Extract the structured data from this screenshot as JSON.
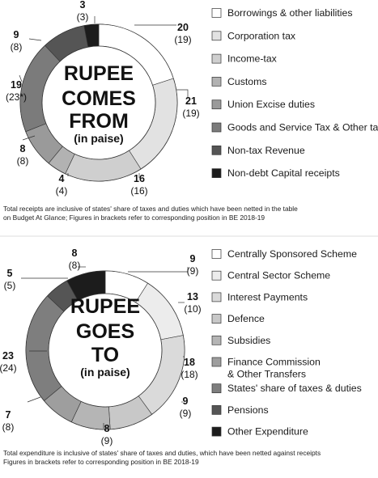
{
  "chart_data": [
    {
      "type": "donut",
      "title_lines": [
        "RUPEE",
        "COMES",
        "FROM"
      ],
      "subtitle": "(in paise)",
      "legend_placement": "right",
      "categories": [
        "Borrowings & other liabilities",
        "Corporation tax",
        "Income-tax",
        "Customs",
        "Union Excise duties",
        "Goods and Service Tax & Other taxes",
        "Non-tax Revenue",
        "Non-debt Capital receipts"
      ],
      "values": [
        20,
        21,
        16,
        4,
        8,
        19,
        9,
        3
      ],
      "previous_labels": [
        "(19)",
        "(19)",
        "(16)",
        "(4)",
        "(8)",
        "(23*)",
        "(8)",
        "(3)"
      ],
      "colors": [
        "#ffffff",
        "#e2e2e2",
        "#cfcfcf",
        "#b2b2b2",
        "#9a9a9a",
        "#7b7b7b",
        "#555555",
        "#1c1c1c"
      ],
      "note_lines": [
        "Total receipts are inclusive of states' share of taxes and duties which have been netted in the table",
        "on Budget At Glance; Figures in brackets refer to corresponding position in BE 2018-19"
      ]
    },
    {
      "type": "donut",
      "title_lines": [
        "RUPEE",
        "GOES",
        "TO"
      ],
      "subtitle": "(in paise)",
      "legend_placement": "right",
      "categories": [
        "Centrally Sponsored Scheme",
        "Central Sector Scheme",
        "Interest Payments",
        "Defence",
        "Subsidies",
        "Finance Commission & Other Transfers",
        "States' share of taxes & duties",
        "Pensions",
        "Other Expenditure"
      ],
      "legend_labels": [
        [
          "Centrally Sponsored Scheme"
        ],
        [
          "Central Sector Scheme"
        ],
        [
          "Interest Payments"
        ],
        [
          "Defence"
        ],
        [
          "Subsidies"
        ],
        [
          "Finance Commission",
          "& Other Transfers"
        ],
        [
          "States' share of taxes & duties"
        ],
        [
          "Pensions"
        ],
        [
          "Other Expenditure"
        ]
      ],
      "values": [
        9,
        13,
        18,
        9,
        8,
        7,
        23,
        5,
        8
      ],
      "previous_labels": [
        "(9)",
        "(10)",
        "(18)",
        "(9)",
        "(9)",
        "(8)",
        "(24)",
        "(5)",
        "(8)"
      ],
      "colors": [
        "#ffffff",
        "#ececec",
        "#dadada",
        "#c8c8c8",
        "#b5b5b5",
        "#9e9e9e",
        "#7e7e7e",
        "#555555",
        "#1c1c1c"
      ],
      "note_lines": [
        "Total expenditure is inclusive of states' share of taxes and duties, which have been netted against receipts",
        "Figures in brackets refer to corresponding position in BE 2018-19"
      ]
    }
  ]
}
